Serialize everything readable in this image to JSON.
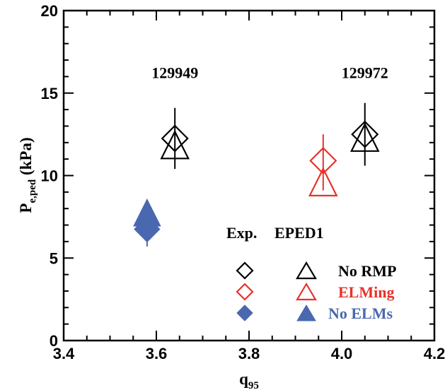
{
  "chart_data": {
    "type": "scatter",
    "xlabel_main": "q",
    "xlabel_sub": "95",
    "ylabel_main": "P",
    "ylabel_sub": "e,ped",
    "ylabel_unit": " (kPa)",
    "xlim": [
      3.4,
      4.2
    ],
    "ylim": [
      0,
      20
    ],
    "x_ticks": [
      "3.4",
      "3.6",
      "3.8",
      "4.0",
      "4.2"
    ],
    "x_tick_values": [
      3.4,
      3.6,
      3.8,
      4.0,
      4.2
    ],
    "y_ticks": [
      "0",
      "5",
      "10",
      "15",
      "20"
    ],
    "y_tick_values": [
      0,
      5,
      10,
      15,
      20
    ],
    "annotations": [
      {
        "text": "129949",
        "x": 3.64,
        "y": 15.9
      },
      {
        "text": "129972",
        "x": 4.05,
        "y": 15.9
      }
    ],
    "series": [
      {
        "name": "No RMP",
        "color": "#000000",
        "filled": false,
        "exp": {
          "x": 3.64,
          "y": 12.25,
          "err": 1.85
        },
        "eped1": {
          "x": 3.64,
          "y": 11.85
        },
        "eped1_err": null
      },
      {
        "name": "No RMP",
        "color": "#000000",
        "filled": false,
        "exp": {
          "x": 4.05,
          "y": 12.5,
          "err": 1.9
        },
        "eped1": {
          "x": 4.05,
          "y": 12.3
        },
        "eped1_err": null
      },
      {
        "name": "ELMing",
        "color": "#e8322a",
        "filled": false,
        "exp": {
          "x": 3.96,
          "y": 10.9,
          "err": 0
        },
        "eped1": {
          "x": 3.96,
          "y": 9.6
        },
        "eped1_err": {
          "low": 9.1,
          "high": 12.5
        }
      },
      {
        "name": "No ELMs",
        "color": "#4a68b0",
        "filled": true,
        "exp": {
          "x": 3.58,
          "y": 6.75,
          "err": 1.05
        },
        "eped1": {
          "x": 3.58,
          "y": 7.75
        },
        "eped1_err": null
      }
    ],
    "legend": {
      "header_exp": "Exp.",
      "header_eped": "EPED1",
      "entries": [
        {
          "label": "No RMP",
          "color": "#000000",
          "filled": false
        },
        {
          "label": "ELMing",
          "color": "#e8322a",
          "filled": false
        },
        {
          "label": "No ELMs",
          "color": "#4a68b0",
          "filled": true
        }
      ]
    }
  }
}
